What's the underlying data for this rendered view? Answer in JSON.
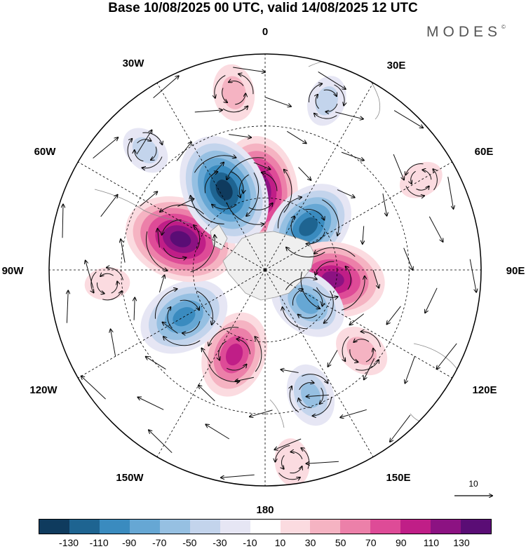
{
  "title": "Base 10/08/2025 00 UTC, valid 14/08/2025 12 UTC",
  "brand": {
    "name": "MODES",
    "mark": "©"
  },
  "longitude_labels": {
    "0": "0",
    "30E": "30E",
    "60E": "60E",
    "90E": "90E",
    "120E": "120E",
    "150E": "150E",
    "180": "180",
    "150W": "150W",
    "120W": "120W",
    "90W": "90W",
    "60W": "60W",
    "30W": "30W"
  },
  "reference_vector": {
    "label": "10",
    "value": 10
  },
  "colorbar": {
    "colors": [
      "#0f3b5e",
      "#1e6491",
      "#3a8bbf",
      "#66a7d4",
      "#96c0e2",
      "#c3d4ec",
      "#e6e6f4",
      "#ffffff",
      "#fbdbe0",
      "#f5b3c2",
      "#ec80a9",
      "#de4b97",
      "#c01e87",
      "#8c1282",
      "#5a0d75"
    ],
    "labels": [
      "-130",
      "-110",
      "-90",
      "-70",
      "-50",
      "-30",
      "-10",
      "10",
      "30",
      "50",
      "70",
      "90",
      "110",
      "130"
    ]
  },
  "anomaly_centers": [
    {
      "name": "positive-anomaly-0",
      "lon": -5,
      "colat": 22,
      "value": 130
    },
    {
      "name": "negative-anomaly-30E",
      "lon": 45,
      "colat": 17,
      "value": -110
    },
    {
      "name": "positive-anomaly-90E",
      "lon": 98,
      "colat": 19,
      "value": 120
    },
    {
      "name": "negative-anomaly-120E",
      "lon": 128,
      "colat": 15,
      "value": -80
    },
    {
      "name": "positive-anomaly-130E",
      "lon": 130,
      "colat": 35,
      "value": 40
    },
    {
      "name": "negative-anomaly-150E",
      "lon": 160,
      "colat": 37,
      "value": -50
    },
    {
      "name": "positive-anomaly-180",
      "lon": 172,
      "colat": 54,
      "value": 25
    },
    {
      "name": "positive-anomaly-150W",
      "lon": -160,
      "colat": 25,
      "value": 90
    },
    {
      "name": "negative-anomaly-120W",
      "lon": -120,
      "colat": 26,
      "value": -100
    },
    {
      "name": "positive-anomaly-60W",
      "lon": -70,
      "colat": 25,
      "value": 135
    },
    {
      "name": "negative-anomaly-45W",
      "lon": -27,
      "colat": 25,
      "value": -135
    },
    {
      "name": "positive-anomaly-90W-edge",
      "lon": -95,
      "colat": 44,
      "value": 20
    },
    {
      "name": "positive-anomaly-30W",
      "lon": -10,
      "colat": 50,
      "value": 40
    },
    {
      "name": "negative-anomaly-40W-edge",
      "lon": -45,
      "colat": 47,
      "value": -30
    },
    {
      "name": "positive-anomaly-45E-edge",
      "lon": 60,
      "colat": 50,
      "value": 20
    },
    {
      "name": "negative-anomaly-15E-edge",
      "lon": 20,
      "colat": 50,
      "value": -30
    }
  ]
}
